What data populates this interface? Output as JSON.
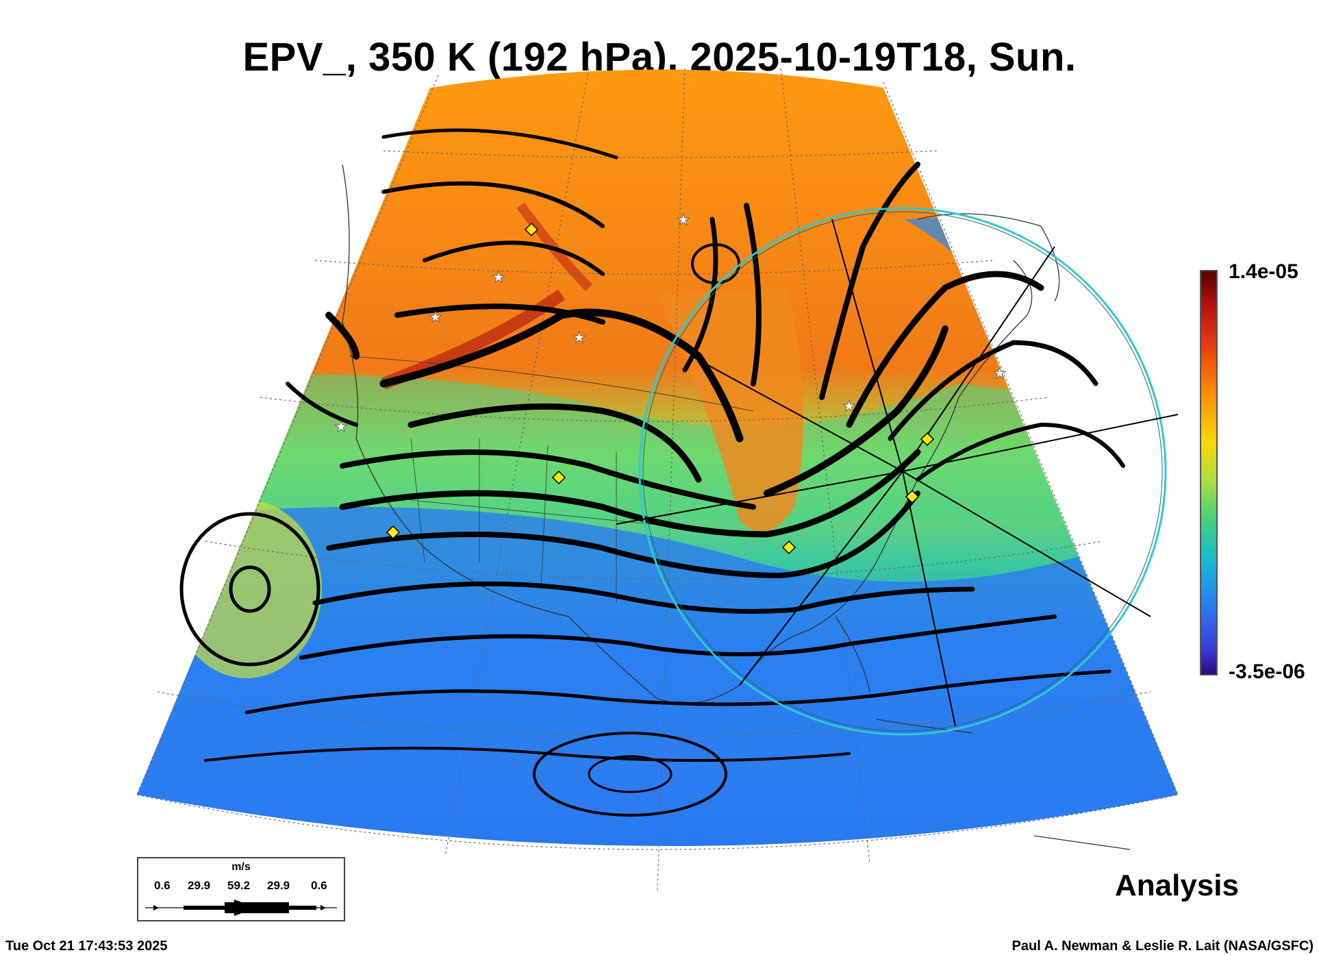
{
  "title": "EPV_, 350 K (192 hPa), 2025-10-19T18, Sun.",
  "colorbar": {
    "max_label": "1.4e-05",
    "min_label": "-3.5e-06"
  },
  "legend": {
    "unit": "m/s",
    "values": [
      "0.6",
      "29.9",
      "59.2",
      "29.9",
      "0.6"
    ]
  },
  "analysis_label": "Analysis",
  "footer": {
    "timestamp": "Tue Oct 21 17:43:53 2025",
    "credit": "Paul A. Newman & Leslie R. Lait (NASA/GSFC)"
  },
  "colors": {
    "high_pv": "#e85a10",
    "mid_pv": "#40d080",
    "low_pv": "#2a78f0",
    "ring": "#30c8d0",
    "marker_diamond": "#ffee00"
  }
}
